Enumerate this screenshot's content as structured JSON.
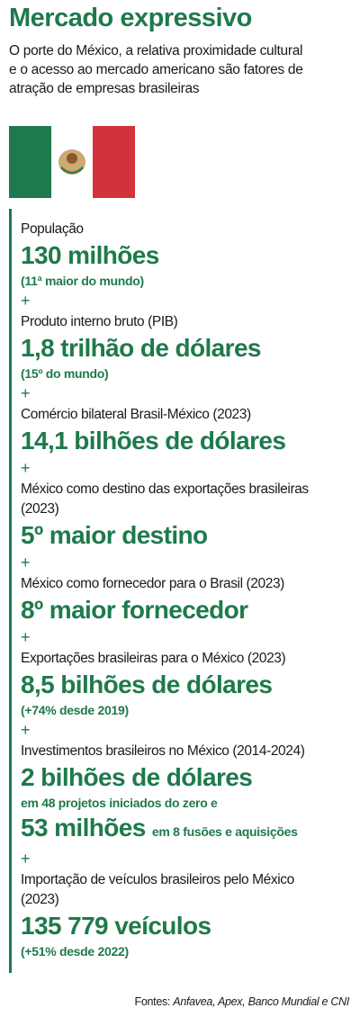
{
  "header": {
    "title": "Mercado expressivo",
    "subtitle": [
      "O porte do México, a relativa proximidade cultural",
      "e o acesso ao mercado americano são fatores de",
      "atração de empresas brasileiras"
    ]
  },
  "items": [
    {
      "label": "População",
      "value": "130 milhões",
      "note": "(11ª maior do mundo)"
    },
    {
      "label": "Produto interno bruto (PIB)",
      "value": "1,8 trilhão de dólares",
      "note": "(15º do mundo)"
    },
    {
      "label": "Comércio bilateral Brasil-México (2023)",
      "value": "14,1 bilhões de dólares"
    },
    {
      "label": "México como destino das exportações brasileiras (2023)",
      "value": "5º maior destino"
    },
    {
      "label": "México como fornecedor para o Brasil (2023)",
      "value": "8º maior fornecedor"
    },
    {
      "label": "Exportações brasileiras para o México (2023)",
      "value": "8,5 bilhões de dólares",
      "note": "(+74% desde 2019)"
    },
    {
      "label": "Investimentos brasileiros no México (2014-2024)",
      "value": "2 bilhões de dólares",
      "note": "em 48 projetos iniciados do zero e",
      "value2": "53 milhões",
      "note2": "em 8 fusões e aquisições"
    },
    {
      "label": "Importação de veículos brasileiros pelo México (2023)",
      "value": "135 779 veículos",
      "note": "(+51% desde 2022)"
    }
  ],
  "sources": {
    "prefix": "Fontes:",
    "list": "Anfavea, Apex, Banco Mundial e CNI"
  }
}
